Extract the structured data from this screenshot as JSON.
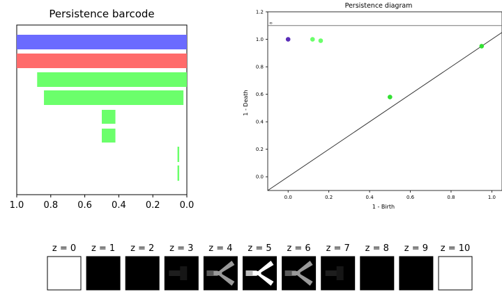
{
  "chart_data": [
    {
      "type": "barcode",
      "title": "Persistence barcode",
      "xlim": [
        1.0,
        0.0
      ],
      "xticks": [
        "1.0",
        "0.8",
        "0.6",
        "0.4",
        "0.2",
        "0.0"
      ],
      "bars": [
        {
          "start": 0.0,
          "end": 1.0,
          "color": "#6b6bff"
        },
        {
          "start": 0.0,
          "end": 1.0,
          "color": "#ff6b6b"
        },
        {
          "start": 0.0,
          "end": 0.88,
          "color": "#6bff6b"
        },
        {
          "start": 0.02,
          "end": 0.84,
          "color": "#6bff6b"
        },
        {
          "start": 0.42,
          "end": 0.5,
          "color": "#6bff6b"
        },
        {
          "start": 0.42,
          "end": 0.5,
          "color": "#6bff6b"
        },
        {
          "start": 0.045,
          "end": 0.055,
          "color": "#6bff6b"
        },
        {
          "start": 0.045,
          "end": 0.055,
          "color": "#6bff6b"
        }
      ]
    },
    {
      "type": "scatter",
      "title": "Persistence diagram",
      "xlabel": "1 - Birth",
      "ylabel": "1 - Death",
      "xlim": [
        -0.1,
        1.05
      ],
      "ylim": [
        -0.1,
        1.2
      ],
      "xticks": [
        "0.0",
        "0.2",
        "0.4",
        "0.6",
        "0.8",
        "1.0"
      ],
      "yticks": [
        "0.0",
        "0.2",
        "0.4",
        "0.6",
        "0.8",
        "1.0",
        "1.2"
      ],
      "infinity_label": "∞",
      "infinity_y": 1.1,
      "points": [
        {
          "x": 0.0,
          "y": 1.0,
          "color": "#5a2db8"
        },
        {
          "x": 0.12,
          "y": 1.0,
          "color": "#6bff6b"
        },
        {
          "x": 0.16,
          "y": 0.99,
          "color": "#6bff6b"
        },
        {
          "x": 0.5,
          "y": 0.58,
          "color": "#33e033"
        },
        {
          "x": 0.95,
          "y": 0.95,
          "color": "#33e033"
        }
      ]
    }
  ],
  "slices": {
    "labels": [
      "z = 0",
      "z = 1",
      "z = 2",
      "z = 3",
      "z = 4",
      "z = 5",
      "z = 6",
      "z = 7",
      "z = 8",
      "z = 9",
      "z = 10"
    ],
    "shades": [
      "white",
      "black",
      "black",
      "faint",
      "shape-mid",
      "shape-bright",
      "shape-mid",
      "faint",
      "black",
      "black",
      "white"
    ]
  }
}
